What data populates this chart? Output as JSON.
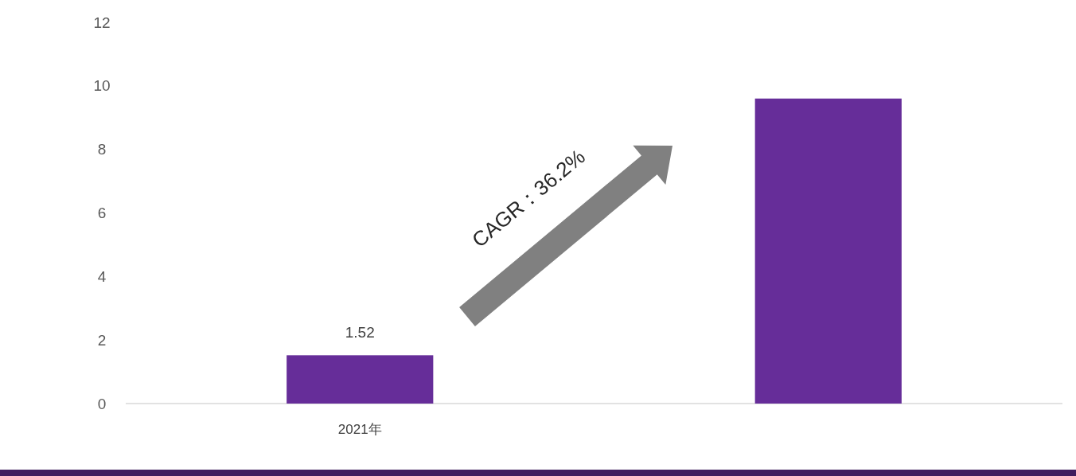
{
  "chart_data": {
    "type": "bar",
    "categories": [
      "2021年",
      null
    ],
    "values": [
      1.52,
      9.6
    ],
    "color": "#662d99",
    "value_labels": [
      "1.52",
      null
    ],
    "ylim": [
      0,
      12
    ],
    "yticks": [
      0,
      2,
      4,
      6,
      8,
      10,
      12
    ],
    "annotations": [
      "CAGR：36.2%"
    ]
  }
}
